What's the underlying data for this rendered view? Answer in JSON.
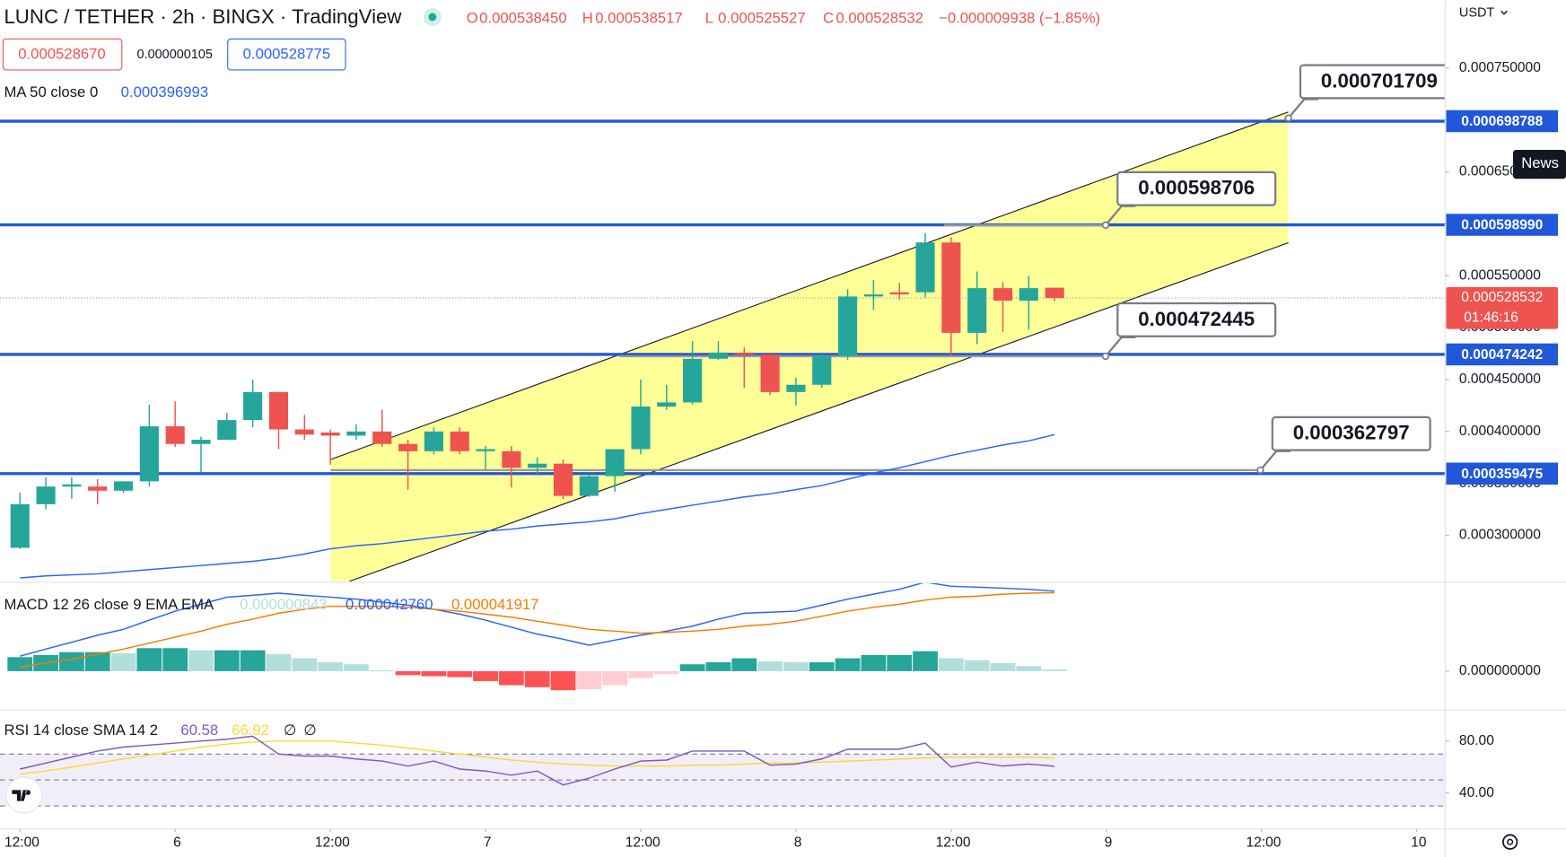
{
  "chart_data": [
    {
      "type": "candlestick",
      "title": "LUNC / TETHER · 2h · BINGX · TradingView",
      "ohlc_legend": [
        {
          "key": "O",
          "value": "0.000538450"
        },
        {
          "key": "H",
          "value": "0.000538517"
        },
        {
          "key": "L",
          "value": "0.000525527"
        },
        {
          "key": "C",
          "value": "0.000528532"
        }
      ],
      "change": "−0.000009938 (−1.85%)",
      "bid": "0.000528670",
      "spread": "0.000000105",
      "ask": "0.000528775",
      "currency": "USDT",
      "news": "News",
      "up_color": "#26a69a",
      "down_color": "#ef5350",
      "x": [
        0,
        1,
        2,
        3,
        4,
        5,
        6,
        7,
        8,
        9,
        10,
        11,
        12,
        13,
        14,
        15,
        16,
        17,
        18,
        19,
        20,
        21,
        22,
        23,
        24,
        25,
        26,
        27,
        28,
        29,
        30,
        31,
        32,
        33,
        34,
        35,
        36,
        37,
        38,
        39,
        40
      ],
      "xlim": [
        -0.772,
        55.1
      ],
      "xticks": [
        {
          "value": 0,
          "label": "12:00"
        },
        {
          "value": 6,
          "label": "6"
        },
        {
          "value": 12,
          "label": "12:00"
        },
        {
          "value": 18,
          "label": "7"
        },
        {
          "value": 24,
          "label": "12:00"
        },
        {
          "value": 30,
          "label": "8"
        },
        {
          "value": 36,
          "label": "12:00"
        },
        {
          "value": 42,
          "label": "9"
        },
        {
          "value": 48,
          "label": "12:00"
        },
        {
          "value": 54,
          "label": "10"
        }
      ],
      "ylim": [
        0.000255769,
        0.000815385
      ],
      "yticks": [
        {
          "value": 0.0003,
          "label": "0.000300000"
        },
        {
          "value": 0.00035,
          "label": "0.000350000"
        },
        {
          "value": 0.0004,
          "label": "0.000400000"
        },
        {
          "value": 0.00045,
          "label": "0.000450000"
        },
        {
          "value": 0.0005,
          "label": "0.000500000"
        },
        {
          "value": 0.00055,
          "label": "0.000550000"
        },
        {
          "value": 0.0006,
          "label": "0.000600000"
        },
        {
          "value": 0.00065,
          "label": "0.000650000"
        },
        {
          "value": 0.0007,
          "label": "0.000700000"
        },
        {
          "value": 0.00075,
          "label": "0.000750000"
        }
      ],
      "open": [
        0.000288,
        0.00033,
        0.000347,
        0.000347,
        0.000343,
        0.000352,
        0.000405,
        0.000388,
        0.000392,
        0.000411,
        0.000438,
        0.000402,
        0.000399,
        0.000396,
        0.0004,
        0.000388,
        0.000381,
        0.0004,
        0.000381,
        0.000381,
        0.000365,
        0.000369,
        0.000338,
        0.000357,
        0.000383,
        0.000424,
        0.000428,
        0.00047,
        0.000476,
        0.000474,
        0.000438,
        0.000445,
        0.000473,
        0.00053,
        0.000534,
        0.000534,
        0.000582,
        0.000495,
        0.000538,
        0.000526,
        0.00053845
      ],
      "high": [
        0.000341,
        0.000356,
        0.000356,
        0.000354,
        0.000352,
        0.000426,
        0.000429,
        0.000395,
        0.000418,
        0.00045,
        0.000438,
        0.000416,
        0.000402,
        0.000407,
        0.000421,
        0.000392,
        0.000404,
        0.000404,
        0.000386,
        0.000386,
        0.000375,
        0.000373,
        0.000359,
        0.000383,
        0.00045,
        0.000445,
        0.000487,
        0.000487,
        0.000481,
        0.000476,
        0.000452,
        0.000476,
        0.000537,
        0.000546,
        0.000543,
        0.000591,
        0.000587,
        0.000554,
        0.000544,
        0.00055,
        0.000538517
      ],
      "low": [
        0.000287,
        0.000325,
        0.000335,
        0.00033,
        0.000341,
        0.000347,
        0.000385,
        0.000361,
        0.000392,
        0.000404,
        0.000383,
        0.000392,
        0.000368,
        0.000392,
        0.000385,
        0.000344,
        0.000378,
        0.000378,
        0.000363,
        0.000346,
        0.000359,
        0.000335,
        0.000337,
        0.000342,
        0.000378,
        0.000421,
        0.000426,
        0.000469,
        0.000442,
        0.000435,
        0.000425,
        0.000442,
        0.000469,
        0.000517,
        0.000527,
        0.000529,
        0.000474,
        0.000484,
        0.000496,
        0.000498,
        0.000525527
      ],
      "close": [
        0.00033,
        0.000347,
        0.000349,
        0.000343,
        0.000352,
        0.000405,
        0.000388,
        0.000392,
        0.000411,
        0.000438,
        0.000402,
        0.000397,
        0.000396,
        0.0004,
        0.000388,
        0.000381,
        0.0004,
        0.000381,
        0.000383,
        0.000365,
        0.000369,
        0.000338,
        0.000357,
        0.000383,
        0.000424,
        0.000428,
        0.00047,
        0.000476,
        0.000474,
        0.000438,
        0.000445,
        0.000473,
        0.00053,
        0.000532,
        0.000532,
        0.000582,
        0.000495,
        0.000538,
        0.000526,
        0.000538,
        0.000528532
      ],
      "ma": {
        "name": "MA 50 close 0",
        "color": "#2962ff",
        "last_label": "0.000396993",
        "values": [
          0.000259,
          0.000261,
          0.000262,
          0.000263,
          0.000265,
          0.000267,
          0.000269,
          0.000271,
          0.000273,
          0.000275,
          0.000278,
          0.000282,
          0.000287,
          0.00029,
          0.000292,
          0.000295,
          0.000298,
          0.000301,
          0.000304,
          0.000306,
          0.000309,
          0.000311,
          0.000313,
          0.000316,
          0.000321,
          0.000325,
          0.000329,
          0.000333,
          0.000337,
          0.00034,
          0.000344,
          0.000348,
          0.000354,
          0.00036,
          0.000365,
          0.000371,
          0.000377,
          0.000382,
          0.000387,
          0.000391,
          0.000396993
        ]
      },
      "levels": [
        {
          "value": 0.000698788,
          "label": "0.000698788"
        },
        {
          "value": 0.00059899,
          "label": "0.000598990"
        },
        {
          "value": 0.000474242,
          "label": "0.000474242"
        },
        {
          "value": 0.000359475,
          "label": "0.000359475"
        }
      ],
      "level_color": "#2157d9",
      "callouts": [
        {
          "value": 0.000701709,
          "label": "0.000701709"
        },
        {
          "value": 0.000598706,
          "label": "0.000598706"
        },
        {
          "value": 0.000472445,
          "label": "0.000472445"
        },
        {
          "value": 0.000362797,
          "label": "0.000362797"
        }
      ],
      "last_price": {
        "value": 0.000528532,
        "label": "0.000528532"
      },
      "countdown": "01:46:16"
    },
    {
      "type": "macd",
      "title": "MACD 12 26 close 9 EMA EMA",
      "ylim": [
        -2.03e-05,
        4.7e-05
      ],
      "yticks": [
        {
          "value": 0,
          "label": "0.000000000"
        }
      ],
      "histogram": {
        "colors": [
          "#26a69a",
          "#b2dfdb",
          "#ff5252",
          "#ffcdd2"
        ],
        "last_label": "0.000000843",
        "values": [
          7.5e-06,
          8.6e-06,
          1.02e-05,
          1.02e-05,
          9.6e-06,
          1.23e-05,
          1.23e-05,
          1.12e-05,
          1.12e-05,
          1.12e-05,
          9.1e-06,
          6.9e-06,
          4.8e-06,
          3.7e-06,
          5e-07,
          -2.1e-06,
          -2.7e-06,
          -3.2e-06,
          -5.3e-06,
          -7.5e-06,
          -8.6e-06,
          -1.02e-05,
          -9.6e-06,
          -7.5e-06,
          -3.7e-06,
          -1.6e-06,
          3.7e-06,
          4.8e-06,
          6.9e-06,
          5.3e-06,
          4.8e-06,
          4.8e-06,
          6.9e-06,
          8.6e-06,
          8.6e-06,
          1.07e-05,
          6.9e-06,
          5.9e-06,
          4.3e-06,
          2.7e-06,
          8.43e-07
        ]
      },
      "macd": {
        "color": "#2962ff",
        "last_label": "0.000042760",
        "values": [
          8e-06,
          1.18e-05,
          1.55e-05,
          1.92e-05,
          2.24e-05,
          2.73e-05,
          3.21e-05,
          3.58e-05,
          3.96e-05,
          4.06e-05,
          4.17e-05,
          4.06e-05,
          3.96e-05,
          3.85e-05,
          3.69e-05,
          3.53e-05,
          3.31e-05,
          3.05e-05,
          2.73e-05,
          2.35e-05,
          1.98e-05,
          1.71e-05,
          1.39e-05,
          1.66e-05,
          1.92e-05,
          2.14e-05,
          2.41e-05,
          2.78e-05,
          3.1e-05,
          3.15e-05,
          3.21e-05,
          3.53e-05,
          3.85e-05,
          4.12e-05,
          4.38e-05,
          4.76e-05,
          4.54e-05,
          4.49e-05,
          4.44e-05,
          4.38e-05,
          4.276e-05
        ]
      },
      "signal": {
        "color": "#f57c00",
        "last_label": "0.000041917",
        "values": [
          2.1e-06,
          4.3e-06,
          6.4e-06,
          9.1e-06,
          1.18e-05,
          1.5e-05,
          1.82e-05,
          2.14e-05,
          2.51e-05,
          2.78e-05,
          3.1e-05,
          3.31e-05,
          3.47e-05,
          3.47e-05,
          3.47e-05,
          3.42e-05,
          3.31e-05,
          3.21e-05,
          3.05e-05,
          2.89e-05,
          2.67e-05,
          2.46e-05,
          2.24e-05,
          2.14e-05,
          2.03e-05,
          2.08e-05,
          2.14e-05,
          2.24e-05,
          2.41e-05,
          2.51e-05,
          2.67e-05,
          2.94e-05,
          3.21e-05,
          3.42e-05,
          3.58e-05,
          3.8e-05,
          3.96e-05,
          4.01e-05,
          4.12e-05,
          4.17e-05,
          4.1917e-05
        ]
      }
    },
    {
      "type": "rsi",
      "title": "RSI 14 close SMA 14 2",
      "ylim": [
        12.31,
        103.08
      ],
      "yticks": [
        {
          "value": 40,
          "label": "40.00"
        },
        {
          "value": 80,
          "label": "80.00"
        }
      ],
      "levels": [
        70,
        50,
        30
      ],
      "band_color": "#7e57c2",
      "rsi": {
        "color": "#7e57c2",
        "last_label": "60.58",
        "values": [
          58.5,
          63.1,
          67.7,
          72.3,
          75.4,
          76.9,
          78.5,
          80,
          81.5,
          83.8,
          70,
          68.5,
          68.5,
          66.2,
          64.6,
          60.8,
          64.6,
          58.5,
          56.9,
          53.8,
          56.9,
          46.2,
          51.5,
          58.5,
          64.6,
          65.4,
          72.3,
          72.3,
          72.3,
          61.5,
          62.3,
          66.2,
          73.8,
          73.8,
          73.8,
          78.5,
          60,
          63.8,
          60.8,
          62.3,
          60.58
        ]
      },
      "sma": {
        "color": "#fdd835",
        "last_label": "66.92",
        "values": [
          54.6,
          56.9,
          60,
          63.1,
          66.2,
          69.2,
          72.3,
          75.4,
          77.7,
          79.2,
          80,
          80,
          80,
          78.5,
          76.9,
          74.6,
          72.3,
          70,
          67.7,
          65.4,
          63.8,
          62.3,
          61.5,
          60.8,
          60.8,
          60.8,
          61.5,
          61.5,
          62.3,
          63.1,
          63.1,
          63.8,
          64.6,
          65.4,
          66.2,
          66.9,
          67.7,
          67.7,
          67.7,
          67.7,
          66.92
        ]
      },
      "extra_labels": [
        "∅",
        "∅"
      ]
    }
  ]
}
